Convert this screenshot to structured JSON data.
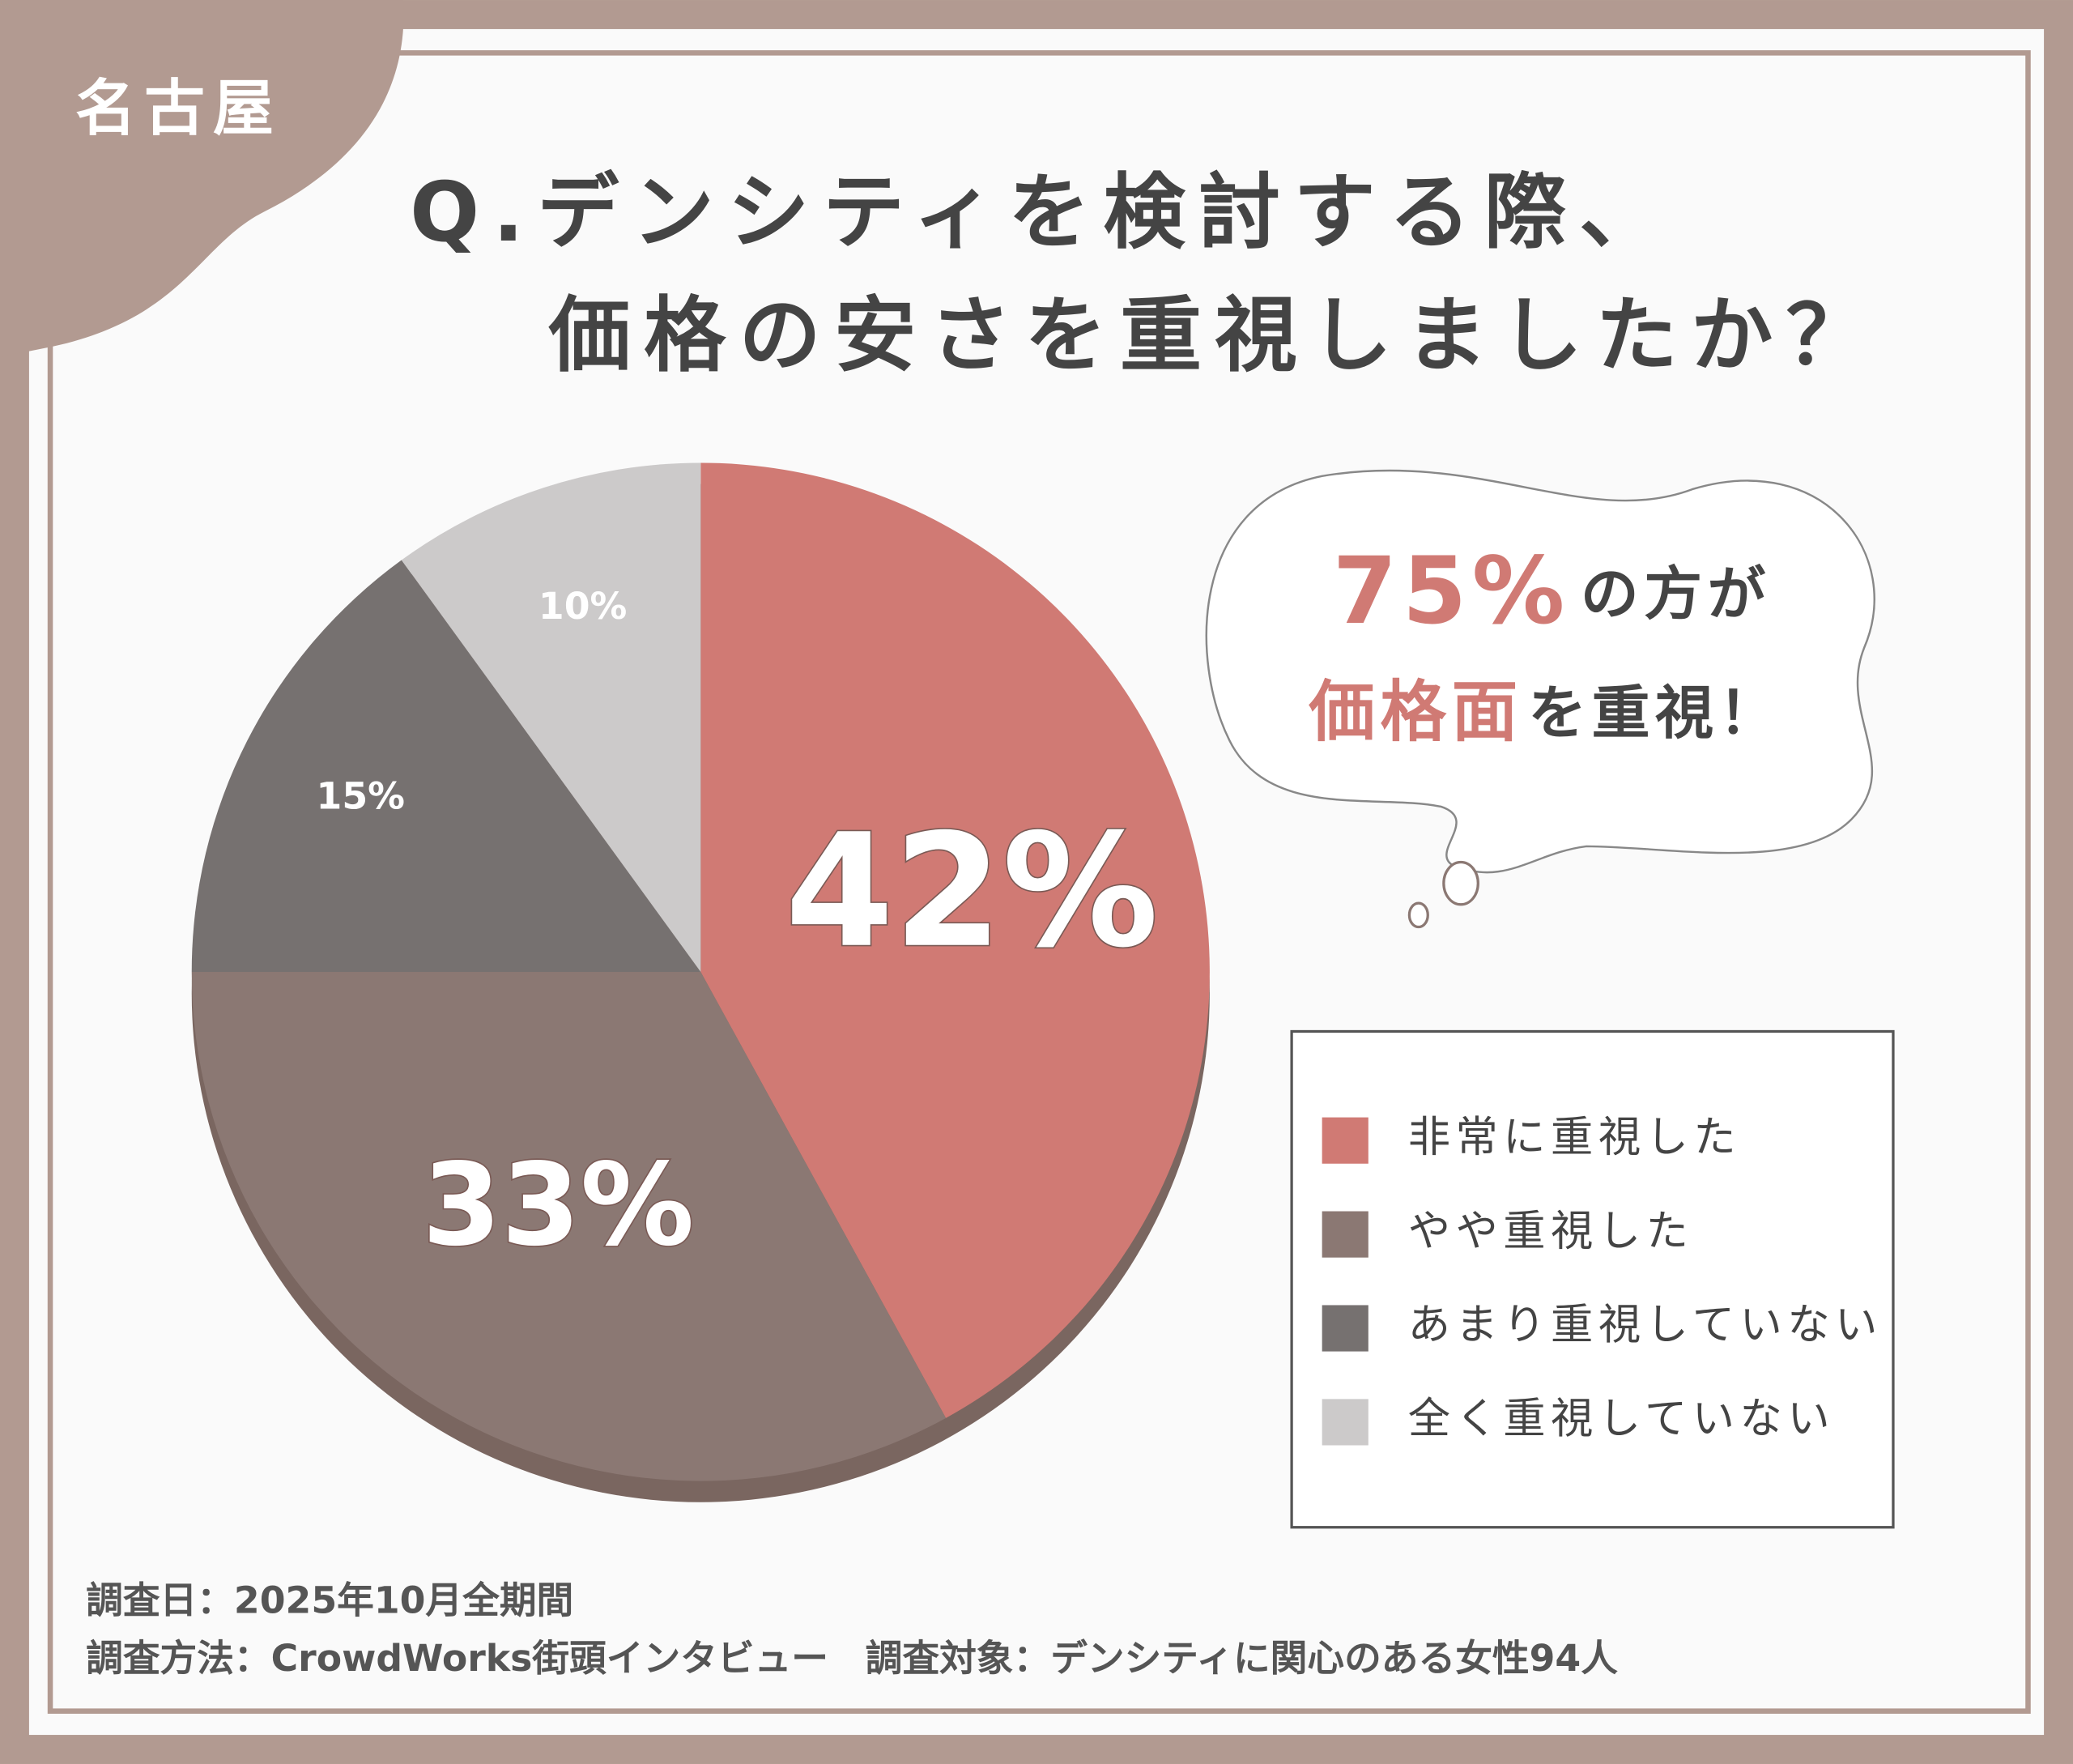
{
  "chart_data": {
    "type": "pie",
    "region": "名古屋",
    "title": [
      "Q.デンシティを検討する際、",
      "価格の安さを重視しましたか？"
    ],
    "categories": [
      "非常に重視した",
      "やや重視した",
      "あまり重視していない",
      "全く重視していない"
    ],
    "values": [
      42,
      33,
      15,
      10
    ],
    "value_labels": [
      "42%",
      "33%",
      "15%",
      "10%"
    ],
    "colors": [
      "#d07a74",
      "#8b7873",
      "#767170",
      "#cccaca"
    ],
    "callout": {
      "line1": [
        "75%",
        "の方が"
      ],
      "line2": [
        "価格面",
        "を重視！"
      ]
    },
    "footer": [
      "調査日：2025年10月全期間",
      "調査方法：CrowdWorks街頭インタビュー　調査対象：デンシティに関心のある女性94人"
    ]
  }
}
